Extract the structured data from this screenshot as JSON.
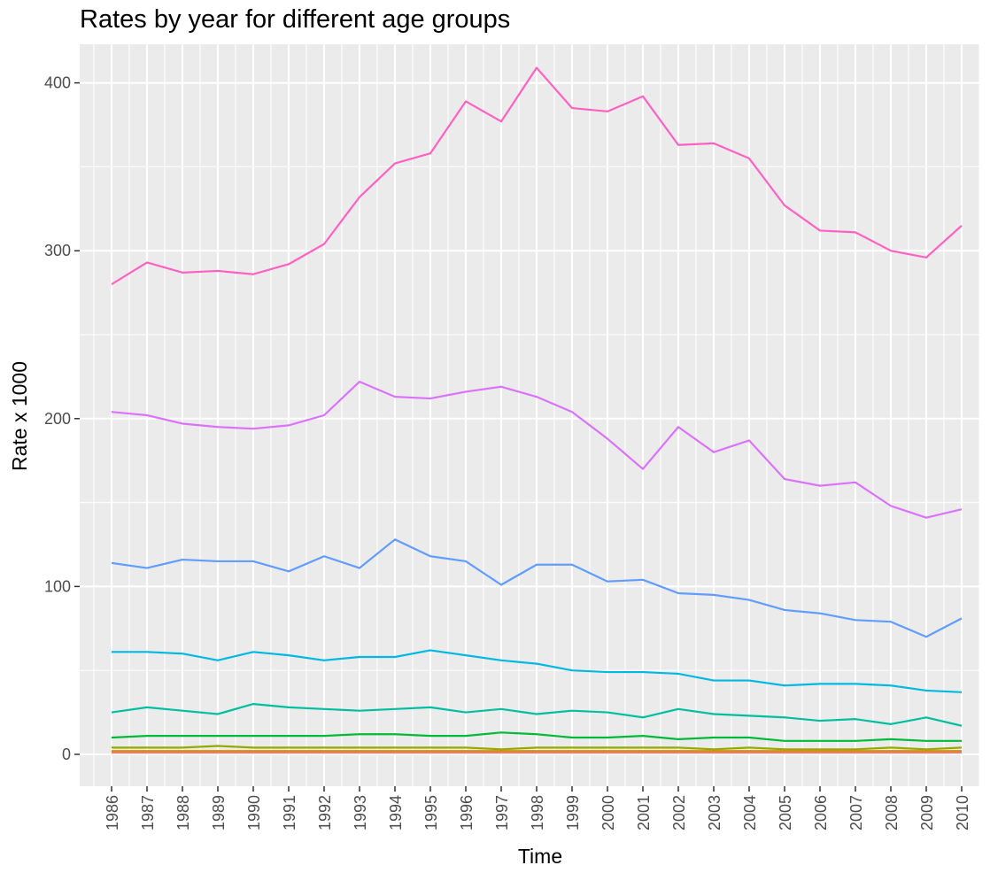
{
  "chart_data": {
    "type": "line",
    "title": "Rates by year for different age groups",
    "xlabel": "Time",
    "ylabel": "Rate x 1000",
    "x": [
      1986,
      1987,
      1988,
      1989,
      1990,
      1991,
      1992,
      1993,
      1994,
      1995,
      1996,
      1997,
      1998,
      1999,
      2000,
      2001,
      2002,
      2003,
      2004,
      2005,
      2006,
      2007,
      2008,
      2009,
      2010
    ],
    "xlim": [
      1985.1,
      2010.5
    ],
    "ylim": [
      -19,
      423
    ],
    "yticks": [
      0,
      100,
      200,
      300,
      400
    ],
    "yminor": [
      50,
      150,
      250,
      350
    ],
    "grid": true,
    "background": "#ebebeb",
    "legend": "none",
    "series": [
      {
        "color": "#ff61c3",
        "values": [
          280,
          293,
          287,
          288,
          286,
          292,
          304,
          332,
          352,
          358,
          389,
          377,
          409,
          385,
          383,
          392,
          363,
          364,
          355,
          327,
          312,
          311,
          300,
          296,
          315
        ]
      },
      {
        "color": "#db72fb",
        "values": [
          204,
          202,
          197,
          195,
          194,
          196,
          202,
          222,
          213,
          212,
          216,
          219,
          213,
          204,
          188,
          170,
          195,
          180,
          187,
          164,
          160,
          162,
          148,
          141,
          146
        ]
      },
      {
        "color": "#619cff",
        "values": [
          114,
          111,
          116,
          115,
          115,
          109,
          118,
          111,
          128,
          118,
          115,
          101,
          113,
          113,
          103,
          104,
          96,
          95,
          92,
          86,
          84,
          80,
          79,
          70,
          81
        ]
      },
      {
        "color": "#00b9e3",
        "values": [
          61,
          61,
          60,
          56,
          61,
          59,
          56,
          58,
          58,
          62,
          59,
          56,
          54,
          50,
          49,
          49,
          48,
          44,
          44,
          41,
          42,
          42,
          41,
          38,
          37
        ]
      },
      {
        "color": "#00bfa0",
        "values": [
          25,
          28,
          26,
          24,
          30,
          28,
          27,
          26,
          27,
          28,
          25,
          27,
          24,
          26,
          25,
          22,
          27,
          24,
          23,
          22,
          20,
          21,
          18,
          22,
          17
        ]
      },
      {
        "color": "#00ba38",
        "values": [
          10,
          11,
          11,
          11,
          11,
          11,
          11,
          12,
          12,
          11,
          11,
          13,
          12,
          10,
          10,
          11,
          9,
          10,
          10,
          8,
          8,
          8,
          9,
          8,
          8
        ]
      },
      {
        "color": "#93aa00",
        "values": [
          4,
          4,
          4,
          5,
          4,
          4,
          4,
          4,
          4,
          4,
          4,
          3,
          4,
          4,
          4,
          4,
          4,
          3,
          4,
          3,
          3,
          3,
          4,
          3,
          4
        ]
      },
      {
        "color": "#d39200",
        "values": [
          2,
          2,
          2,
          2,
          2,
          2,
          2,
          2,
          2,
          2,
          2,
          2,
          2,
          2,
          2,
          2,
          2,
          2,
          2,
          2,
          2,
          2,
          2,
          2,
          2
        ]
      },
      {
        "color": "#f8766d",
        "values": [
          1,
          1,
          1,
          1,
          1,
          1,
          1,
          1,
          1,
          1,
          1,
          1,
          1,
          1,
          1,
          1,
          1,
          1,
          1,
          1,
          1,
          1,
          1,
          1,
          1
        ]
      }
    ]
  }
}
